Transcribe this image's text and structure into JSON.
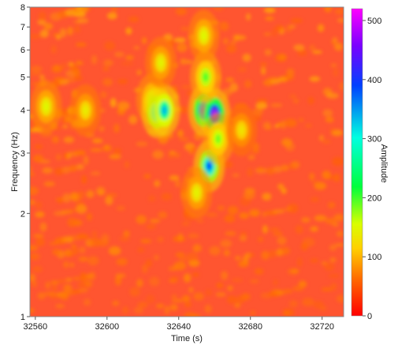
{
  "chart_data": {
    "type": "heatmap",
    "xlabel": "Time (s)",
    "ylabel": "Frequency (Hz)",
    "colorbar_label": "Amplitude",
    "x_ticks": [
      32560,
      32600,
      32640,
      32680,
      32720
    ],
    "x_tick_labels": [
      "32560",
      "32600",
      "32640",
      "32680",
      "32720"
    ],
    "xlim": [
      32557,
      32732
    ],
    "y_scale": "log",
    "y_ticks": [
      1,
      2,
      3,
      4,
      5,
      6,
      7,
      8
    ],
    "y_tick_labels": [
      "1",
      "2",
      "3",
      "4",
      "5",
      "6",
      "7",
      "8"
    ],
    "ylim": [
      1,
      8
    ],
    "colorbar_ticks": [
      0,
      100,
      200,
      300,
      400,
      500
    ],
    "colorbar_tick_labels": [
      "0",
      "100",
      "200",
      "300",
      "400",
      "500"
    ],
    "colorbar_range": [
      0,
      520
    ],
    "colormap": [
      "#ff0000",
      "#ff6a00",
      "#ffd000",
      "#d8ff00",
      "#00ff3c",
      "#00ffe0",
      "#0040ff",
      "#7a00ff",
      "#ff00ff"
    ],
    "background_amplitude": 40,
    "hotspots": [
      {
        "time": 32566,
        "freq": 4.1,
        "amplitude": 190
      },
      {
        "time": 32588,
        "freq": 4.0,
        "amplitude": 170
      },
      {
        "time": 32625,
        "freq": 4.3,
        "amplitude": 210
      },
      {
        "time": 32628,
        "freq": 3.95,
        "amplitude": 380
      },
      {
        "time": 32632,
        "freq": 4.0,
        "amplitude": 350
      },
      {
        "time": 32630,
        "freq": 5.5,
        "amplitude": 180
      },
      {
        "time": 32654,
        "freq": 4.0,
        "amplitude": 440
      },
      {
        "time": 32660,
        "freq": 3.9,
        "amplitude": 480
      },
      {
        "time": 32657,
        "freq": 2.75,
        "amplitude": 390
      },
      {
        "time": 32655,
        "freq": 5.0,
        "amplitude": 240
      },
      {
        "time": 32654,
        "freq": 6.6,
        "amplitude": 190
      },
      {
        "time": 32662,
        "freq": 3.3,
        "amplitude": 230
      },
      {
        "time": 32650,
        "freq": 2.3,
        "amplitude": 180
      },
      {
        "time": 32675,
        "freq": 3.5,
        "amplitude": 160
      }
    ]
  }
}
